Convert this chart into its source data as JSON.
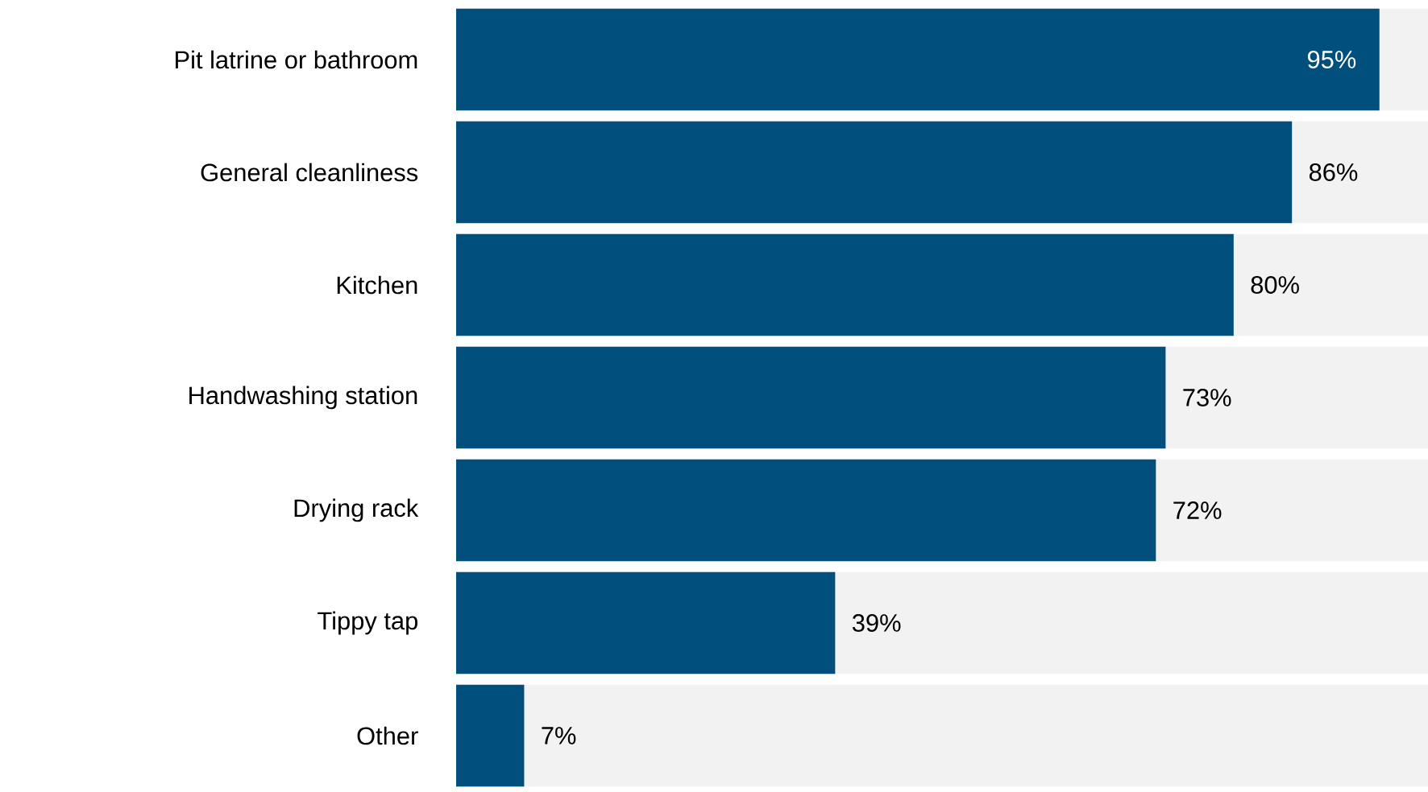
{
  "chart_data": {
    "type": "bar",
    "orientation": "horizontal",
    "tick_labels": "y",
    "xlim": [
      0,
      100
    ],
    "categories": [
      "Pit latrine or bathroom",
      "General cleanliness",
      "Kitchen",
      "Handwashing station",
      "Drying rack",
      "Tippy tap",
      "Other"
    ],
    "series": [
      {
        "color": "#004f7c",
        "values": [
          95,
          86,
          80,
          73,
          72,
          39,
          7
        ],
        "value_labels": [
          "95%",
          "86%",
          "80%",
          "73%",
          "72%",
          "39%",
          "7%"
        ]
      }
    ]
  }
}
